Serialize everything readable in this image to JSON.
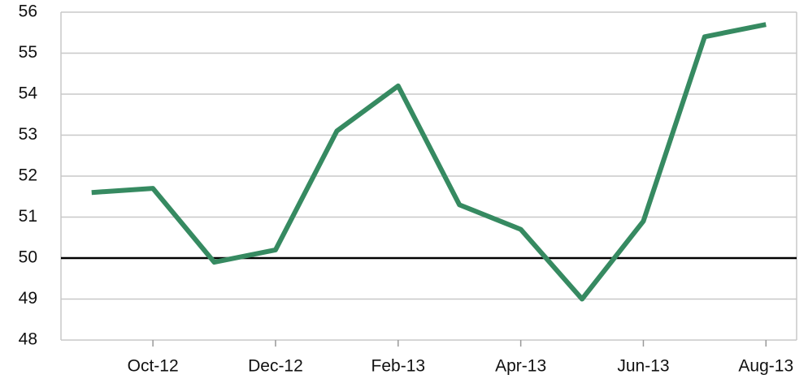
{
  "chart_data": {
    "type": "line",
    "categories": [
      null,
      "Oct-12",
      null,
      "Dec-12",
      null,
      "Feb-13",
      null,
      "Apr-13",
      null,
      "Jun-13",
      null,
      "Aug-13"
    ],
    "series": [
      {
        "color": "#368a61",
        "values": [
          51.6,
          51.7,
          49.9,
          50.2,
          53.1,
          54.2,
          51.3,
          50.7,
          49.0,
          50.9,
          55.4,
          55.7
        ]
      }
    ],
    "ylim": [
      48,
      56
    ],
    "yticks": [
      48,
      49,
      50,
      51,
      52,
      53,
      54,
      55,
      56
    ],
    "grid": true,
    "reference_line": 50
  }
}
